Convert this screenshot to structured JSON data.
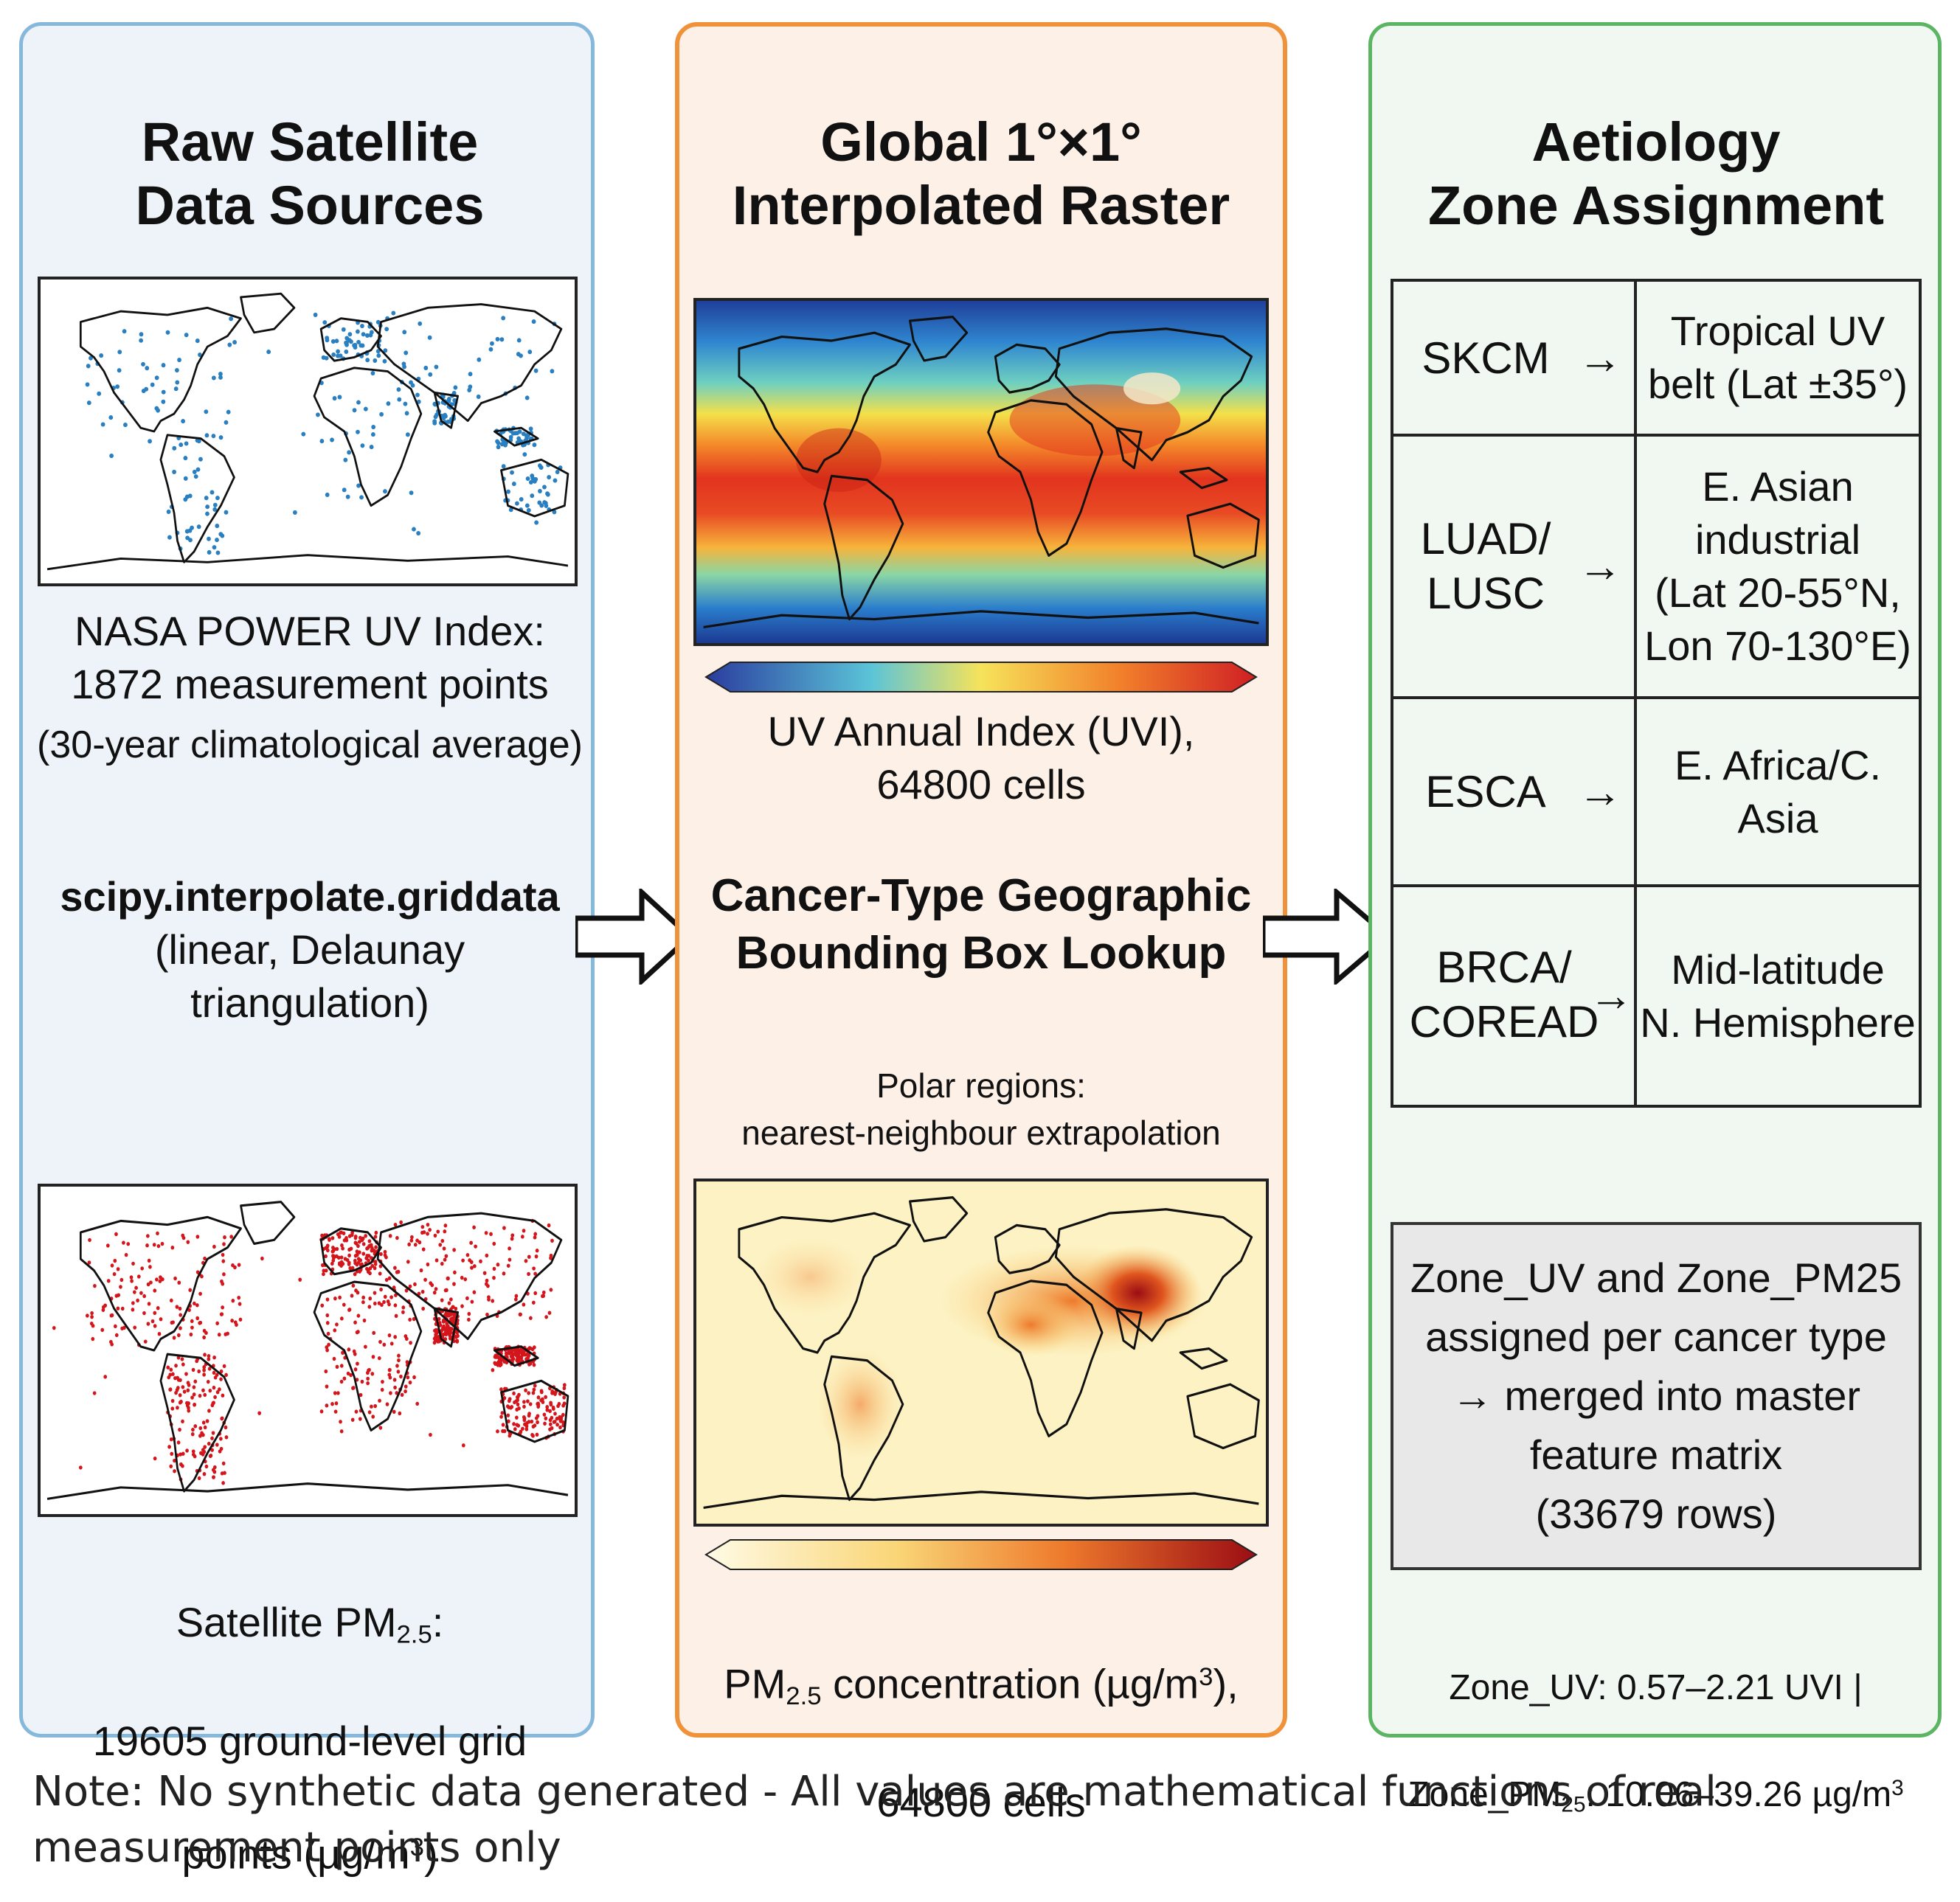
{
  "panels": {
    "raw": {
      "title": "Raw Satellite\nData Sources",
      "uv_caption": "NASA POWER UV Index:\n1872 measurement points",
      "uv_caption_sub": "(30-year climatological average)",
      "method": "scipy.interpolate.griddata",
      "method_detail": "(linear, Delaunay\ntriangulation)",
      "pm_prefix": "Satellite PM",
      "pm_sub": "2.5",
      "pm_suffix": ":",
      "pm_line2": "19605 ground-level grid",
      "pm_line3a": "points (µg/m",
      "pm_line3sup": "3",
      "pm_line3b": ")"
    },
    "raster": {
      "title": "Global 1°×1°\nInterpolated Raster",
      "uv_caption": "UV Annual Index (UVI),\n64800 cells",
      "lookup": "Cancer-Type Geographic\nBounding Box Lookup",
      "polar_note": "Polar regions:\nnearest-neighbour extrapolation",
      "pm_prefix": "PM",
      "pm_sub": "2.5",
      "pm_mid": " concentration (µg/m",
      "pm_sup": "3",
      "pm_end": "),",
      "pm_line2": "64800 cells"
    },
    "zone": {
      "title": "Aetiology\nZone Assignment",
      "rows": [
        {
          "code": "SKCM",
          "region": "Tropical UV\nbelt (Lat ±35°)"
        },
        {
          "code": "LUAD/\nLUSC",
          "region": "E. Asian\nindustrial\n(Lat 20-55°N,\nLon 70-130°E)"
        },
        {
          "code": "ESCA",
          "region": "E. Africa/C.\nAsia"
        },
        {
          "code": "BRCA/\nCOREAD",
          "region": "Mid-latitude\nN. Hemisphere"
        }
      ],
      "arrow": "→",
      "summary": "Zone_UV and Zone_PM25\nassigned per cancer type\n→ merged into master\nfeature matrix\n(33679 rows)",
      "range_uv": "Zone_UV: 0.57–2.21 UVI |",
      "range_pm_prefix": "Zone_PM",
      "range_pm_sub": "25",
      "range_pm_suffix": ": 10.06–39.26 µg/m",
      "range_pm_sup": "3"
    }
  },
  "note": "Note: No synthetic data generated - All values are mathematical functions of real measurement points only",
  "colors": {
    "raw_border": "#86b8dc",
    "raster_border": "#f0923a",
    "zone_border": "#5cb563",
    "uv_points": "#2a7fc0",
    "pm_points": "#d4161c"
  }
}
